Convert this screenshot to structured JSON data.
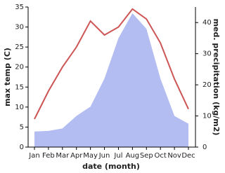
{
  "chart_data": {
    "type": "line-area",
    "categories": [
      "Jan",
      "Feb",
      "Mar",
      "Apr",
      "May",
      "Jun",
      "Jul",
      "Aug",
      "Sep",
      "Oct",
      "Nov",
      "Dec"
    ],
    "series": [
      {
        "name": "med. precipitation (kg/m2)",
        "color": "#b3bdf2",
        "axis": "y2",
        "kind": "area",
        "values": [
          5,
          5.2,
          6,
          10,
          13,
          22,
          35,
          43,
          38,
          22,
          10,
          7.5
        ]
      },
      {
        "name": "max temp (C)",
        "color": "#cd5555",
        "kind": "line",
        "values": [
          7,
          14,
          20,
          25,
          31.5,
          28,
          30,
          34.5,
          32,
          26,
          17,
          9.5
        ]
      }
    ],
    "ylabel": "max temp (C)",
    "y2label": "med. precipitation (kg/m2)",
    "xlabel": "date (month)",
    "ylim": [
      0,
      35
    ],
    "yticks": [
      0,
      5,
      10,
      15,
      20,
      25,
      30,
      35
    ],
    "y2lim": [
      0,
      45
    ],
    "y2ticks": [
      0,
      10,
      20,
      30,
      40
    ]
  }
}
